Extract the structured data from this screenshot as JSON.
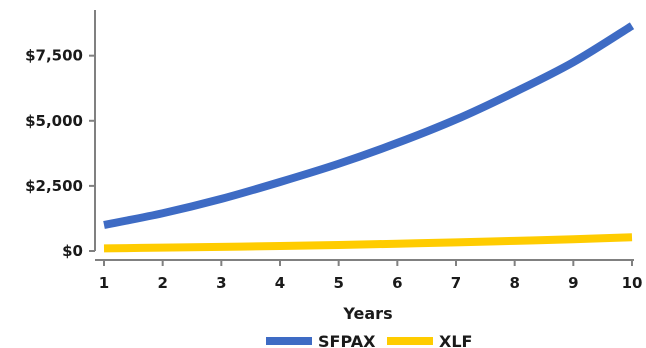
{
  "chart_data": {
    "type": "line",
    "title": "",
    "xlabel": "Years",
    "ylabel": "",
    "x": [
      1,
      2,
      3,
      4,
      5,
      6,
      7,
      8,
      9,
      10
    ],
    "x_tick_labels": [
      "1",
      "2",
      "3",
      "4",
      "5",
      "6",
      "7",
      "8",
      "9",
      "10"
    ],
    "y_tick_values": [
      0,
      2500,
      5000,
      7500
    ],
    "y_tick_labels": [
      "$0",
      "$2,500",
      "$5,000",
      "$7,500"
    ],
    "ylim": [
      0,
      9100
    ],
    "xlim": [
      1,
      10
    ],
    "grid": false,
    "legend_position": "bottom",
    "series": [
      {
        "name": "SFPAX",
        "color": "#3e6bc4",
        "values": [
          1000,
          1450,
          2000,
          2650,
          3350,
          4150,
          5050,
          6100,
          7250,
          8650
        ]
      },
      {
        "name": "XLF",
        "color": "#ffcc00",
        "values": [
          100,
          130,
          160,
          190,
          230,
          280,
          330,
          390,
          450,
          530
        ]
      }
    ]
  }
}
